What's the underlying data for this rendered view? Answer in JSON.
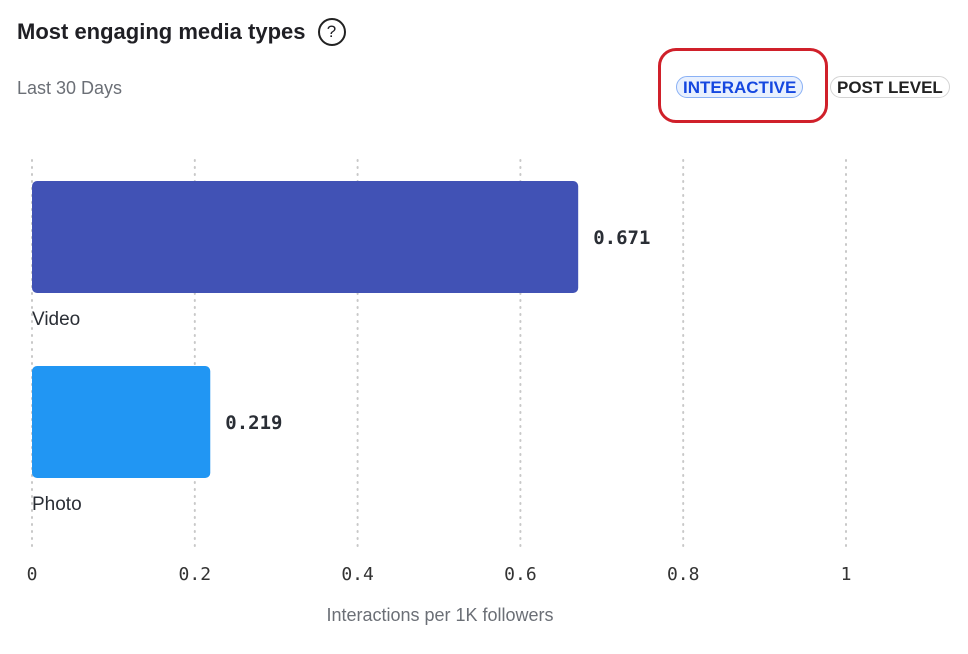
{
  "header": {
    "title": "Most engaging media types",
    "help_icon": "question-circle-icon",
    "subtitle": "Last 30 Days"
  },
  "toggles": [
    {
      "label": "INTERACTIVE",
      "active": true
    },
    {
      "label": "POST LEVEL",
      "active": false
    }
  ],
  "chart_data": {
    "type": "bar",
    "orientation": "horizontal",
    "categories": [
      "Video",
      "Photo"
    ],
    "values": [
      0.671,
      0.219
    ],
    "data_labels": [
      "0.671",
      "0.219"
    ],
    "colors": [
      "#4152b5",
      "#2196f3"
    ],
    "xlabel": "Interactions per 1K followers",
    "xlim": [
      0,
      1
    ],
    "xticks": [
      0,
      0.2,
      0.4,
      0.6,
      0.8,
      1
    ],
    "xtick_labels": [
      "0",
      "0.2",
      "0.4",
      "0.6",
      "0.8",
      "1"
    ],
    "grid": "vertical dotted"
  }
}
